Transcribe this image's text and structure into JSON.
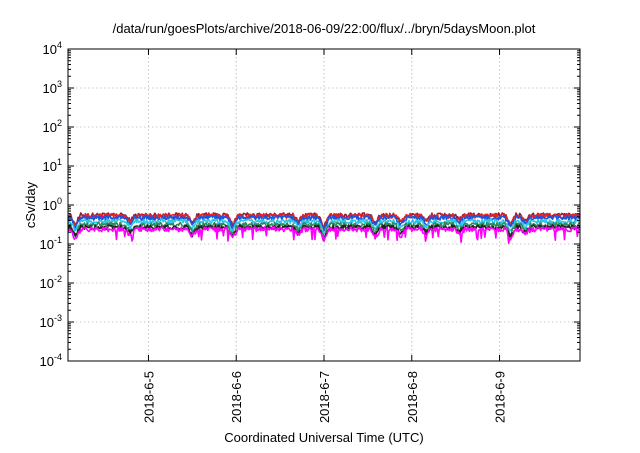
{
  "chart_data": {
    "type": "line",
    "title": "/data/run/goesPlots/archive/2018-06-09/22:00/flux/../bryn/5daysMoon.plot",
    "xlabel": "Coordinated Universal Time (UTC)",
    "ylabel": "cSv/day",
    "yscale": "log",
    "ylim": [
      0.0001,
      10000
    ],
    "yticks": [
      {
        "base": "10",
        "exp": "-4",
        "value": 0.0001
      },
      {
        "base": "10",
        "exp": "-3",
        "value": 0.001
      },
      {
        "base": "10",
        "exp": "-2",
        "value": 0.01
      },
      {
        "base": "10",
        "exp": "-1",
        "value": 0.1
      },
      {
        "base": "10",
        "exp": "0",
        "value": 1
      },
      {
        "base": "10",
        "exp": "1",
        "value": 10
      },
      {
        "base": "10",
        "exp": "2",
        "value": 100
      },
      {
        "base": "10",
        "exp": "3",
        "value": 1000
      },
      {
        "base": "10",
        "exp": "4",
        "value": 10000
      }
    ],
    "xlim": [
      "2018-06-04 02:00",
      "2018-06-09 22:00"
    ],
    "xticks": [
      "2018-6-5",
      "2018-6-6",
      "2018-6-7",
      "2018-6-8",
      "2018-6-9"
    ],
    "grid": true,
    "legend": "none",
    "series": [
      {
        "color": "#8e1d3b",
        "level": 0.55
      },
      {
        "color": "#e2242a",
        "level": 0.53
      },
      {
        "color": "#1a55e0",
        "level": 0.47
      },
      {
        "color": "#29c6e6",
        "level": 0.38
      },
      {
        "color": "#2e8b57",
        "level": 0.31
      },
      {
        "color": "#222222",
        "level": 0.27
      },
      {
        "color": "#ff00ff",
        "level": 0.24
      }
    ],
    "dips": [
      {
        "x": "2018-06-04 04:00",
        "factor": 0.55
      },
      {
        "x": "2018-06-04 19:00",
        "factor": 0.7
      },
      {
        "x": "2018-06-05 12:00",
        "factor": 0.65
      },
      {
        "x": "2018-06-05 23:00",
        "factor": 0.55
      },
      {
        "x": "2018-06-06 17:00",
        "factor": 0.7
      },
      {
        "x": "2018-06-07 00:00",
        "factor": 0.45
      },
      {
        "x": "2018-06-07 14:00",
        "factor": 0.6
      },
      {
        "x": "2018-06-07 21:00",
        "factor": 0.65
      },
      {
        "x": "2018-06-08 04:00",
        "factor": 0.7
      },
      {
        "x": "2018-06-08 13:00",
        "factor": 0.75
      },
      {
        "x": "2018-06-09 03:00",
        "factor": 0.55
      },
      {
        "x": "2018-06-09 07:00",
        "factor": 0.7
      }
    ]
  }
}
